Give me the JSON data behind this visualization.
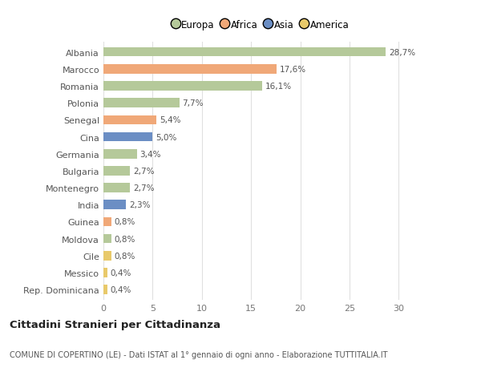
{
  "categories": [
    "Rep. Dominicana",
    "Messico",
    "Cile",
    "Moldova",
    "Guinea",
    "India",
    "Montenegro",
    "Bulgaria",
    "Germania",
    "Cina",
    "Senegal",
    "Polonia",
    "Romania",
    "Marocco",
    "Albania"
  ],
  "values": [
    0.4,
    0.4,
    0.8,
    0.8,
    0.8,
    2.3,
    2.7,
    2.7,
    3.4,
    5.0,
    5.4,
    7.7,
    16.1,
    17.6,
    28.7
  ],
  "labels": [
    "0,4%",
    "0,4%",
    "0,8%",
    "0,8%",
    "0,8%",
    "2,3%",
    "2,7%",
    "2,7%",
    "3,4%",
    "5,0%",
    "5,4%",
    "7,7%",
    "16,1%",
    "17,6%",
    "28,7%"
  ],
  "colors": [
    "#e8c96a",
    "#e8c96a",
    "#e8c96a",
    "#b5c99a",
    "#f0a878",
    "#6b8ec4",
    "#b5c99a",
    "#b5c99a",
    "#b5c99a",
    "#6b8ec4",
    "#f0a878",
    "#b5c99a",
    "#b5c99a",
    "#f0a878",
    "#b5c99a"
  ],
  "legend_labels": [
    "Europa",
    "Africa",
    "Asia",
    "America"
  ],
  "legend_colors": [
    "#b5c99a",
    "#f0a878",
    "#6b8ec4",
    "#e8c96a"
  ],
  "title": "Cittadini Stranieri per Cittadinanza",
  "subtitle": "COMUNE DI COPERTINO (LE) - Dati ISTAT al 1° gennaio di ogni anno - Elaborazione TUTTITALIA.IT",
  "xlim": [
    0,
    32
  ],
  "xticks": [
    0,
    5,
    10,
    15,
    20,
    25,
    30
  ],
  "background_color": "#ffffff",
  "grid_color": "#e0e0e0"
}
